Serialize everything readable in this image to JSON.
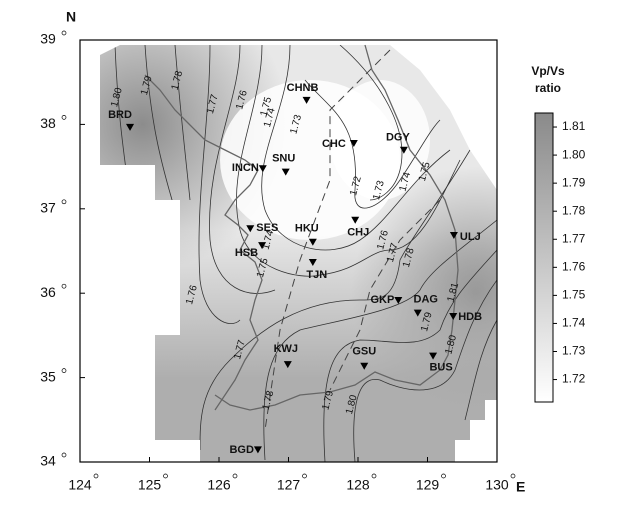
{
  "map": {
    "x_axis": {
      "label": "E",
      "lim": [
        124,
        130
      ],
      "ticks": [
        124,
        125,
        126,
        127,
        128,
        129,
        130
      ]
    },
    "y_axis": {
      "label": "N",
      "lim": [
        34,
        39
      ],
      "ticks": [
        34,
        35,
        36,
        37,
        38,
        39
      ]
    },
    "colorbar": {
      "title": [
        "Vp/Vs",
        "ratio"
      ],
      "lim": [
        1.712,
        1.815
      ],
      "ticks": [
        1.81,
        {
          "value": 1.8,
          "label": "1.80"
        },
        1.79,
        1.78,
        1.77,
        1.76,
        1.75,
        1.74,
        1.73,
        1.72
      ],
      "colors": [
        "#ffffff",
        "#8a8a8a"
      ]
    },
    "stations": [
      {
        "name": "BRD",
        "lon": 124.72,
        "lat": 37.97
      },
      {
        "name": "CHNB",
        "lon": 127.26,
        "lat": 38.29
      },
      {
        "name": "CHC",
        "lon": 127.94,
        "lat": 37.78
      },
      {
        "name": "DGY",
        "lon": 128.66,
        "lat": 37.7
      },
      {
        "name": "INCN",
        "lon": 126.63,
        "lat": 37.48
      },
      {
        "name": "SNU",
        "lon": 126.96,
        "lat": 37.44
      },
      {
        "name": "CHJ",
        "lon": 127.96,
        "lat": 36.87
      },
      {
        "name": "SES",
        "lon": 126.45,
        "lat": 36.77
      },
      {
        "name": "HKU",
        "lon": 127.35,
        "lat": 36.61
      },
      {
        "name": "HSB",
        "lon": 126.62,
        "lat": 36.57
      },
      {
        "name": "TJN",
        "lon": 127.35,
        "lat": 36.37
      },
      {
        "name": "ULJ",
        "lon": 129.38,
        "lat": 36.69
      },
      {
        "name": "GKP",
        "lon": 128.58,
        "lat": 35.92
      },
      {
        "name": "DAG",
        "lon": 128.86,
        "lat": 35.77
      },
      {
        "name": "HDB",
        "lon": 129.37,
        "lat": 35.73
      },
      {
        "name": "KWJ",
        "lon": 126.99,
        "lat": 35.16
      },
      {
        "name": "GSU",
        "lon": 128.09,
        "lat": 35.14
      },
      {
        "name": "BUS",
        "lon": 129.08,
        "lat": 35.26
      },
      {
        "name": "BGD",
        "lon": 126.56,
        "lat": 34.15
      }
    ],
    "contour_labels": [
      {
        "label": "1.80",
        "lon": 124.53,
        "lat": 38.32
      },
      {
        "label": "1.79",
        "lon": 124.96,
        "lat": 38.46
      },
      {
        "label": "1.78",
        "lon": 125.4,
        "lat": 38.52
      },
      {
        "label": "1.77",
        "lon": 125.91,
        "lat": 38.24
      },
      {
        "label": "1.76",
        "lon": 126.33,
        "lat": 38.29
      },
      {
        "label": "1.75",
        "lon": 126.68,
        "lat": 38.21
      },
      {
        "label": "1.74",
        "lon": 126.73,
        "lat": 38.08
      },
      {
        "label": "1.73",
        "lon": 127.11,
        "lat": 38.0
      },
      {
        "label": "1.72",
        "lon": 127.97,
        "lat": 37.27
      },
      {
        "label": "1.73",
        "lon": 128.3,
        "lat": 37.22
      },
      {
        "label": "1.74",
        "lon": 128.68,
        "lat": 37.32
      },
      {
        "label": "1.75",
        "lon": 128.96,
        "lat": 37.44
      },
      {
        "label": "1.74",
        "lon": 126.71,
        "lat": 36.63
      },
      {
        "label": "1.75",
        "lon": 126.63,
        "lat": 36.3
      },
      {
        "label": "1.76",
        "lon": 125.61,
        "lat": 35.98
      },
      {
        "label": "1.76",
        "lon": 128.36,
        "lat": 36.63
      },
      {
        "label": "1.77",
        "lon": 128.5,
        "lat": 36.48
      },
      {
        "label": "1.78",
        "lon": 128.73,
        "lat": 36.42
      },
      {
        "label": "1.81",
        "lon": 129.37,
        "lat": 36.01
      },
      {
        "label": "1.79",
        "lon": 128.99,
        "lat": 35.66
      },
      {
        "label": "1.80",
        "lon": 129.34,
        "lat": 35.39
      },
      {
        "label": "1.77",
        "lon": 126.3,
        "lat": 35.33
      },
      {
        "label": "1.78",
        "lon": 126.71,
        "lat": 34.73
      },
      {
        "label": "1.79",
        "lon": 127.57,
        "lat": 34.73
      },
      {
        "label": "1.80",
        "lon": 127.91,
        "lat": 34.68
      }
    ]
  }
}
